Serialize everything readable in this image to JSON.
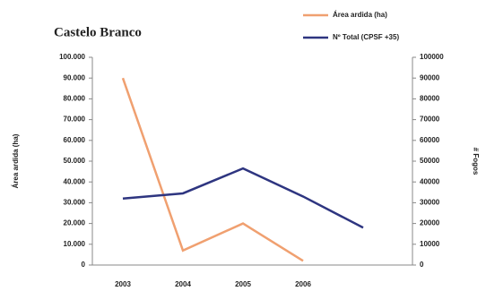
{
  "chart_data": {
    "type": "line",
    "title": "Castelo Branco",
    "categories": [
      "2003",
      "2004",
      "2005",
      "2006",
      null
    ],
    "series": [
      {
        "name": "Área ardida (ha)",
        "color": "#f0a070",
        "values": [
          90000,
          7000,
          20000,
          2000,
          null
        ]
      },
      {
        "name": "Nº Total (CPSF +35)",
        "color": "#2e3580",
        "axis": "y2",
        "values": [
          32000,
          34500,
          46500,
          33000,
          18000
        ]
      }
    ],
    "ylabel": "Área ardida (ha)",
    "y2label": "# Fogos",
    "ylim": [
      0,
      100000
    ],
    "yticks": [
      0,
      {
        "value": 10000,
        "label": "10.000"
      },
      {
        "value": 20000,
        "label": "20.000"
      },
      {
        "value": 30000,
        "label": "30.000"
      },
      {
        "value": 40000,
        "label": "40.000"
      },
      {
        "value": 50000,
        "label": "50.000"
      },
      {
        "value": 60000,
        "label": "60.000"
      },
      {
        "value": 70000,
        "label": "70.000"
      },
      {
        "value": 80000,
        "label": "80.000"
      },
      {
        "value": 90000,
        "label": "90.000"
      },
      {
        "value": 100000,
        "label": "100.000"
      }
    ],
    "y2lim": [
      0,
      100000
    ],
    "y2ticks": [
      0,
      10000,
      20000,
      30000,
      40000,
      50000,
      60000,
      70000,
      80000,
      90000,
      100000
    ],
    "grid": false
  }
}
